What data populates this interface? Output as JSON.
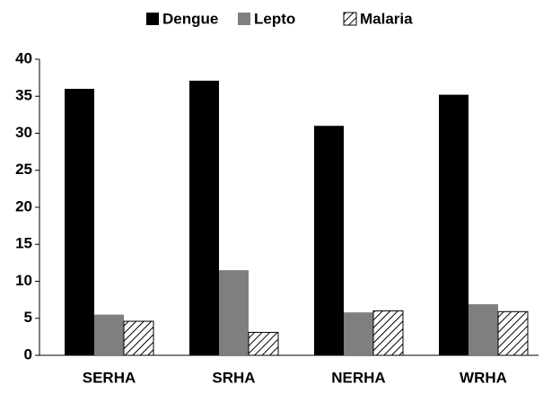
{
  "chart_data": {
    "type": "bar",
    "categories": [
      "SERHA",
      "SRHA",
      "NERHA",
      "WRHA"
    ],
    "series": [
      {
        "name": "Dengue",
        "color": "#000000",
        "values": [
          36,
          37.1,
          31,
          35.2
        ]
      },
      {
        "name": "Lepto",
        "color": "#7f7f7f",
        "values": [
          5.5,
          11.5,
          5.8,
          6.9
        ]
      },
      {
        "name": "Malaria",
        "color": "#000000",
        "pattern": "hatch",
        "values": [
          4.6,
          3.1,
          6,
          5.9
        ]
      }
    ],
    "ylim": [
      0,
      40
    ],
    "yticks": [
      0,
      5,
      10,
      15,
      20,
      25,
      30,
      35,
      40
    ],
    "grid": false,
    "legend": "top"
  }
}
